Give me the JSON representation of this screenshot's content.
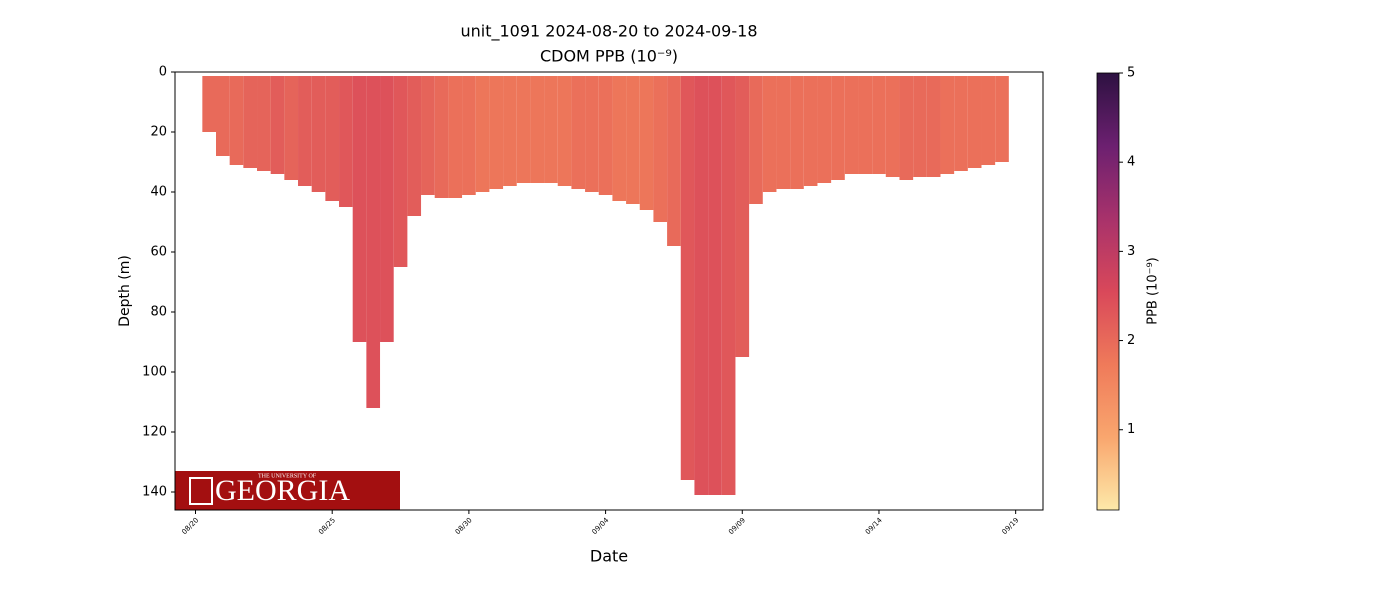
{
  "chart_data": {
    "type": "section",
    "title": "unit_1091 2024-08-20 to 2024-09-18",
    "subtitle": "CDOM PPB (10⁻⁹)",
    "x_label": "Date",
    "y_label": "Depth (m)",
    "colorbar_label": "PPB (10⁻⁹)",
    "x": [
      "2024-08-20T12:00",
      "2024-08-21T00:00",
      "2024-08-21T12:00",
      "2024-08-22T00:00",
      "2024-08-22T12:00",
      "2024-08-23T00:00",
      "2024-08-23T12:00",
      "2024-08-24T00:00",
      "2024-08-24T12:00",
      "2024-08-25T00:00",
      "2024-08-25T12:00",
      "2024-08-26T00:00",
      "2024-08-26T12:00",
      "2024-08-27T00:00",
      "2024-08-27T12:00",
      "2024-08-28T00:00",
      "2024-08-28T12:00",
      "2024-08-29T00:00",
      "2024-08-29T12:00",
      "2024-08-30T00:00",
      "2024-08-30T12:00",
      "2024-08-31T00:00",
      "2024-08-31T12:00",
      "2024-09-01T00:00",
      "2024-09-01T12:00",
      "2024-09-02T00:00",
      "2024-09-02T12:00",
      "2024-09-03T00:00",
      "2024-09-03T12:00",
      "2024-09-04T00:00",
      "2024-09-04T12:00",
      "2024-09-05T00:00",
      "2024-09-05T12:00",
      "2024-09-06T00:00",
      "2024-09-06T12:00",
      "2024-09-07T00:00",
      "2024-09-07T12:00",
      "2024-09-08T00:00",
      "2024-09-08T12:00",
      "2024-09-09T00:00",
      "2024-09-09T12:00",
      "2024-09-10T00:00",
      "2024-09-10T12:00",
      "2024-09-11T00:00",
      "2024-09-11T12:00",
      "2024-09-12T00:00",
      "2024-09-12T12:00",
      "2024-09-13T00:00",
      "2024-09-13T12:00",
      "2024-09-14T00:00",
      "2024-09-14T12:00",
      "2024-09-15T00:00",
      "2024-09-15T12:00",
      "2024-09-16T00:00",
      "2024-09-16T12:00",
      "2024-09-17T00:00",
      "2024-09-17T12:00",
      "2024-09-18T00:00",
      "2024-09-18T12:00"
    ],
    "depth": [
      20,
      28,
      31,
      32,
      33,
      34,
      36,
      38,
      40,
      43,
      45,
      90,
      112,
      90,
      65,
      48,
      41,
      42,
      42,
      41,
      40,
      39,
      38,
      37,
      37,
      37,
      38,
      39,
      40,
      41,
      43,
      44,
      46,
      50,
      58,
      136,
      141,
      141,
      141,
      95,
      44,
      40,
      39,
      39,
      38,
      37,
      36,
      34,
      34,
      34,
      35,
      36,
      35,
      35,
      34,
      33,
      32,
      31,
      30
    ],
    "ppb": [
      2.0,
      2.0,
      2.0,
      2.1,
      2.1,
      2.2,
      2.1,
      2.2,
      2.2,
      2.2,
      2.3,
      2.4,
      2.4,
      2.4,
      2.3,
      2.2,
      2.1,
      2.0,
      1.9,
      1.9,
      1.8,
      1.8,
      1.8,
      1.8,
      1.8,
      1.8,
      1.8,
      1.9,
      1.9,
      1.9,
      1.8,
      1.8,
      1.8,
      1.9,
      2.0,
      2.3,
      2.4,
      2.4,
      2.3,
      2.2,
      2.0,
      1.9,
      1.9,
      1.9,
      1.9,
      1.9,
      1.9,
      1.9,
      1.9,
      1.9,
      1.9,
      2.0,
      2.0,
      2.0,
      1.9,
      1.9,
      1.9,
      1.9,
      1.9
    ],
    "xlim": [
      "2024-08-19T06:00",
      "2024-09-20T00:00"
    ],
    "xticks": [
      {
        "value": "2024-08-20T00:00",
        "label": "08/20"
      },
      {
        "value": "2024-08-25T00:00",
        "label": "08/25"
      },
      {
        "value": "2024-08-30T00:00",
        "label": "08/30"
      },
      {
        "value": "2024-09-04T00:00",
        "label": "09/04"
      },
      {
        "value": "2024-09-09T00:00",
        "label": "09/09"
      },
      {
        "value": "2024-09-14T00:00",
        "label": "09/14"
      },
      {
        "value": "2024-09-19T00:00",
        "label": "09/19"
      }
    ],
    "ylim": [
      0,
      146
    ],
    "yticks": [
      0,
      20,
      40,
      60,
      80,
      100,
      120,
      140
    ],
    "y_inverted": true,
    "clim": [
      0.1,
      5
    ],
    "cticks": [
      1,
      2,
      3,
      4,
      5
    ],
    "colormap": [
      "#fde9a9",
      "#f9a66e",
      "#ef7a5a",
      "#d9485a",
      "#a8326b",
      "#6c2070",
      "#2d1141"
    ],
    "logo": {
      "line1": "THE UNIVERSITY OF",
      "line2": "GEORGIA",
      "color": "#a30f10"
    }
  }
}
